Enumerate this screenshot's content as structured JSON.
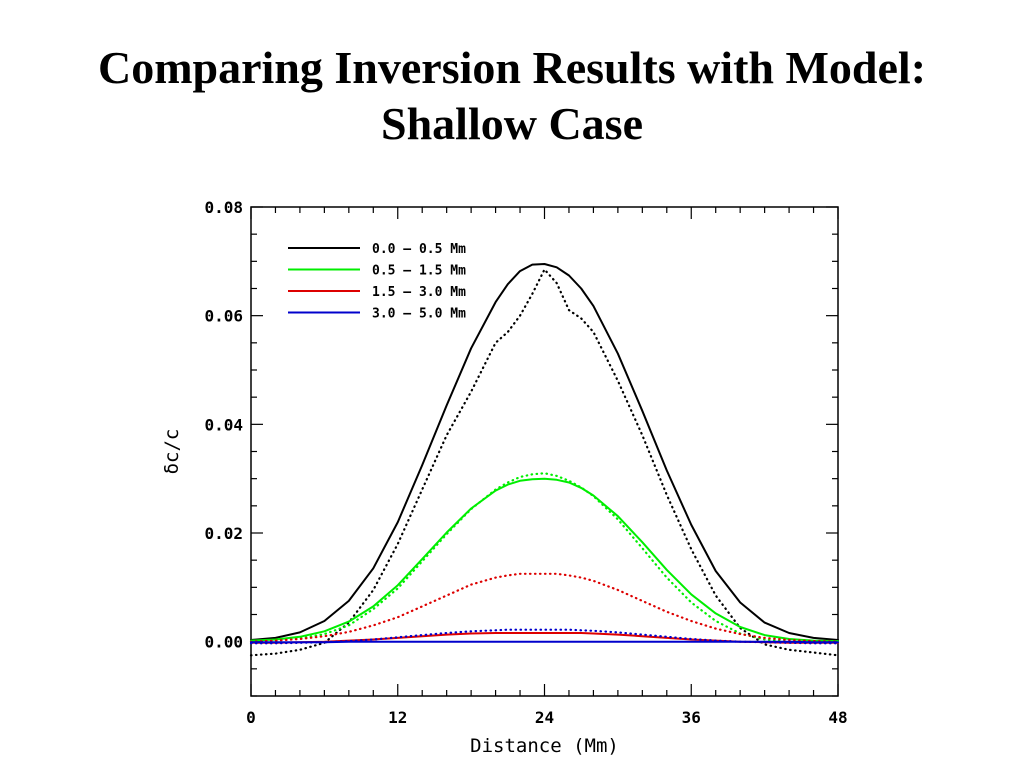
{
  "slide": {
    "title_line1": "Comparing Inversion Results with Model:",
    "title_line2": "Shallow Case"
  },
  "chart_data": {
    "type": "line",
    "xlabel": "Distance (Mm)",
    "ylabel": "δc/c",
    "xlim": [
      0,
      48
    ],
    "ylim": [
      -0.01,
      0.08
    ],
    "xticks": [
      0,
      12,
      24,
      36,
      48
    ],
    "xtick_labels": [
      "0",
      "12",
      "24",
      "36",
      "48"
    ],
    "yticks": [
      0.0,
      0.02,
      0.04,
      0.06,
      0.08
    ],
    "ytick_labels": [
      "0.00",
      "0.02",
      "0.04",
      "0.06",
      "0.08"
    ],
    "grid": false,
    "legend_position": "top-left",
    "legend_note": "solid = model, dotted = inversion",
    "x": [
      0,
      2,
      4,
      6,
      8,
      10,
      12,
      14,
      16,
      18,
      20,
      21,
      22,
      23,
      24,
      25,
      26,
      27,
      28,
      30,
      32,
      34,
      36,
      38,
      40,
      42,
      44,
      46,
      48
    ],
    "series": [
      {
        "name": "0.0 – 0.5 Mm",
        "color": "#000000",
        "solid": [
          0.0003,
          0.0007,
          0.0017,
          0.0038,
          0.0075,
          0.0135,
          0.022,
          0.0325,
          0.0435,
          0.054,
          0.0625,
          0.0658,
          0.0682,
          0.0694,
          0.0695,
          0.0689,
          0.0674,
          0.065,
          0.0618,
          0.053,
          0.0425,
          0.0315,
          0.0215,
          0.013,
          0.0072,
          0.0035,
          0.0016,
          0.0007,
          0.0003
        ],
        "dotted": [
          -0.0025,
          -0.0022,
          -0.0015,
          -0.0002,
          0.0035,
          0.0095,
          0.018,
          0.028,
          0.038,
          0.046,
          0.055,
          0.057,
          0.06,
          0.064,
          0.0685,
          0.066,
          0.061,
          0.0595,
          0.057,
          0.048,
          0.038,
          0.027,
          0.017,
          0.0085,
          0.0025,
          -0.0005,
          -0.0015,
          -0.002,
          -0.0025
        ]
      },
      {
        "name": "0.5 – 1.5 Mm",
        "color": "#00ee00",
        "solid": [
          0.0002,
          0.0004,
          0.0009,
          0.0019,
          0.0037,
          0.0065,
          0.0104,
          0.0152,
          0.0201,
          0.0245,
          0.0278,
          0.0289,
          0.0296,
          0.0299,
          0.03,
          0.0298,
          0.0293,
          0.0283,
          0.0269,
          0.0231,
          0.0183,
          0.0132,
          0.0087,
          0.0052,
          0.0027,
          0.0012,
          0.0005,
          0.0002,
          0.0001
        ],
        "dotted": [
          0.0,
          0.0002,
          0.0006,
          0.0014,
          0.003,
          0.006,
          0.0098,
          0.0148,
          0.0198,
          0.0244,
          0.028,
          0.0293,
          0.0303,
          0.0308,
          0.031,
          0.0305,
          0.0296,
          0.0284,
          0.0268,
          0.0225,
          0.0172,
          0.0118,
          0.0072,
          0.0038,
          0.0015,
          0.0004,
          0.0,
          -0.0001,
          -0.0001
        ]
      },
      {
        "name": "1.5 – 3.0 Mm",
        "color": "#dd0000",
        "solid": [
          -0.0002,
          -0.0002,
          -0.0001,
          0.0,
          0.0002,
          0.0004,
          0.0007,
          0.001,
          0.0013,
          0.0015,
          0.0016,
          0.0016,
          0.0016,
          0.0016,
          0.0016,
          0.0016,
          0.0016,
          0.0016,
          0.0015,
          0.0013,
          0.001,
          0.0007,
          0.0004,
          0.0002,
          0.0,
          -0.0001,
          -0.0002,
          -0.0002,
          -0.0002
        ],
        "dotted": [
          0.0,
          0.0002,
          0.0005,
          0.001,
          0.0018,
          0.003,
          0.0045,
          0.0065,
          0.0085,
          0.0105,
          0.0118,
          0.0122,
          0.0125,
          0.0125,
          0.0125,
          0.0125,
          0.0122,
          0.0118,
          0.0112,
          0.0095,
          0.0075,
          0.0055,
          0.0038,
          0.0024,
          0.0014,
          0.0007,
          0.0003,
          0.0001,
          0.0
        ]
      },
      {
        "name": "3.0 – 5.0 Mm",
        "color": "#0000cc",
        "solid": [
          -0.0001,
          -0.0001,
          -0.0001,
          -0.0001,
          0.0,
          0.0,
          0.0,
          0.0,
          0.0,
          0.0,
          0.0,
          0.0,
          0.0,
          0.0,
          0.0,
          0.0,
          0.0,
          0.0,
          0.0,
          0.0,
          0.0,
          0.0,
          0.0,
          0.0,
          0.0,
          0.0,
          0.0,
          -0.0001,
          -0.0001
        ],
        "dotted": [
          -0.0003,
          -0.0003,
          -0.0002,
          -0.0001,
          0.0001,
          0.0004,
          0.0008,
          0.0012,
          0.0016,
          0.0019,
          0.0021,
          0.0022,
          0.0022,
          0.0022,
          0.0022,
          0.0022,
          0.0022,
          0.0021,
          0.002,
          0.0017,
          0.0013,
          0.0009,
          0.0005,
          0.0002,
          0.0,
          -0.0001,
          -0.0002,
          -0.0003,
          -0.0003
        ]
      }
    ]
  }
}
